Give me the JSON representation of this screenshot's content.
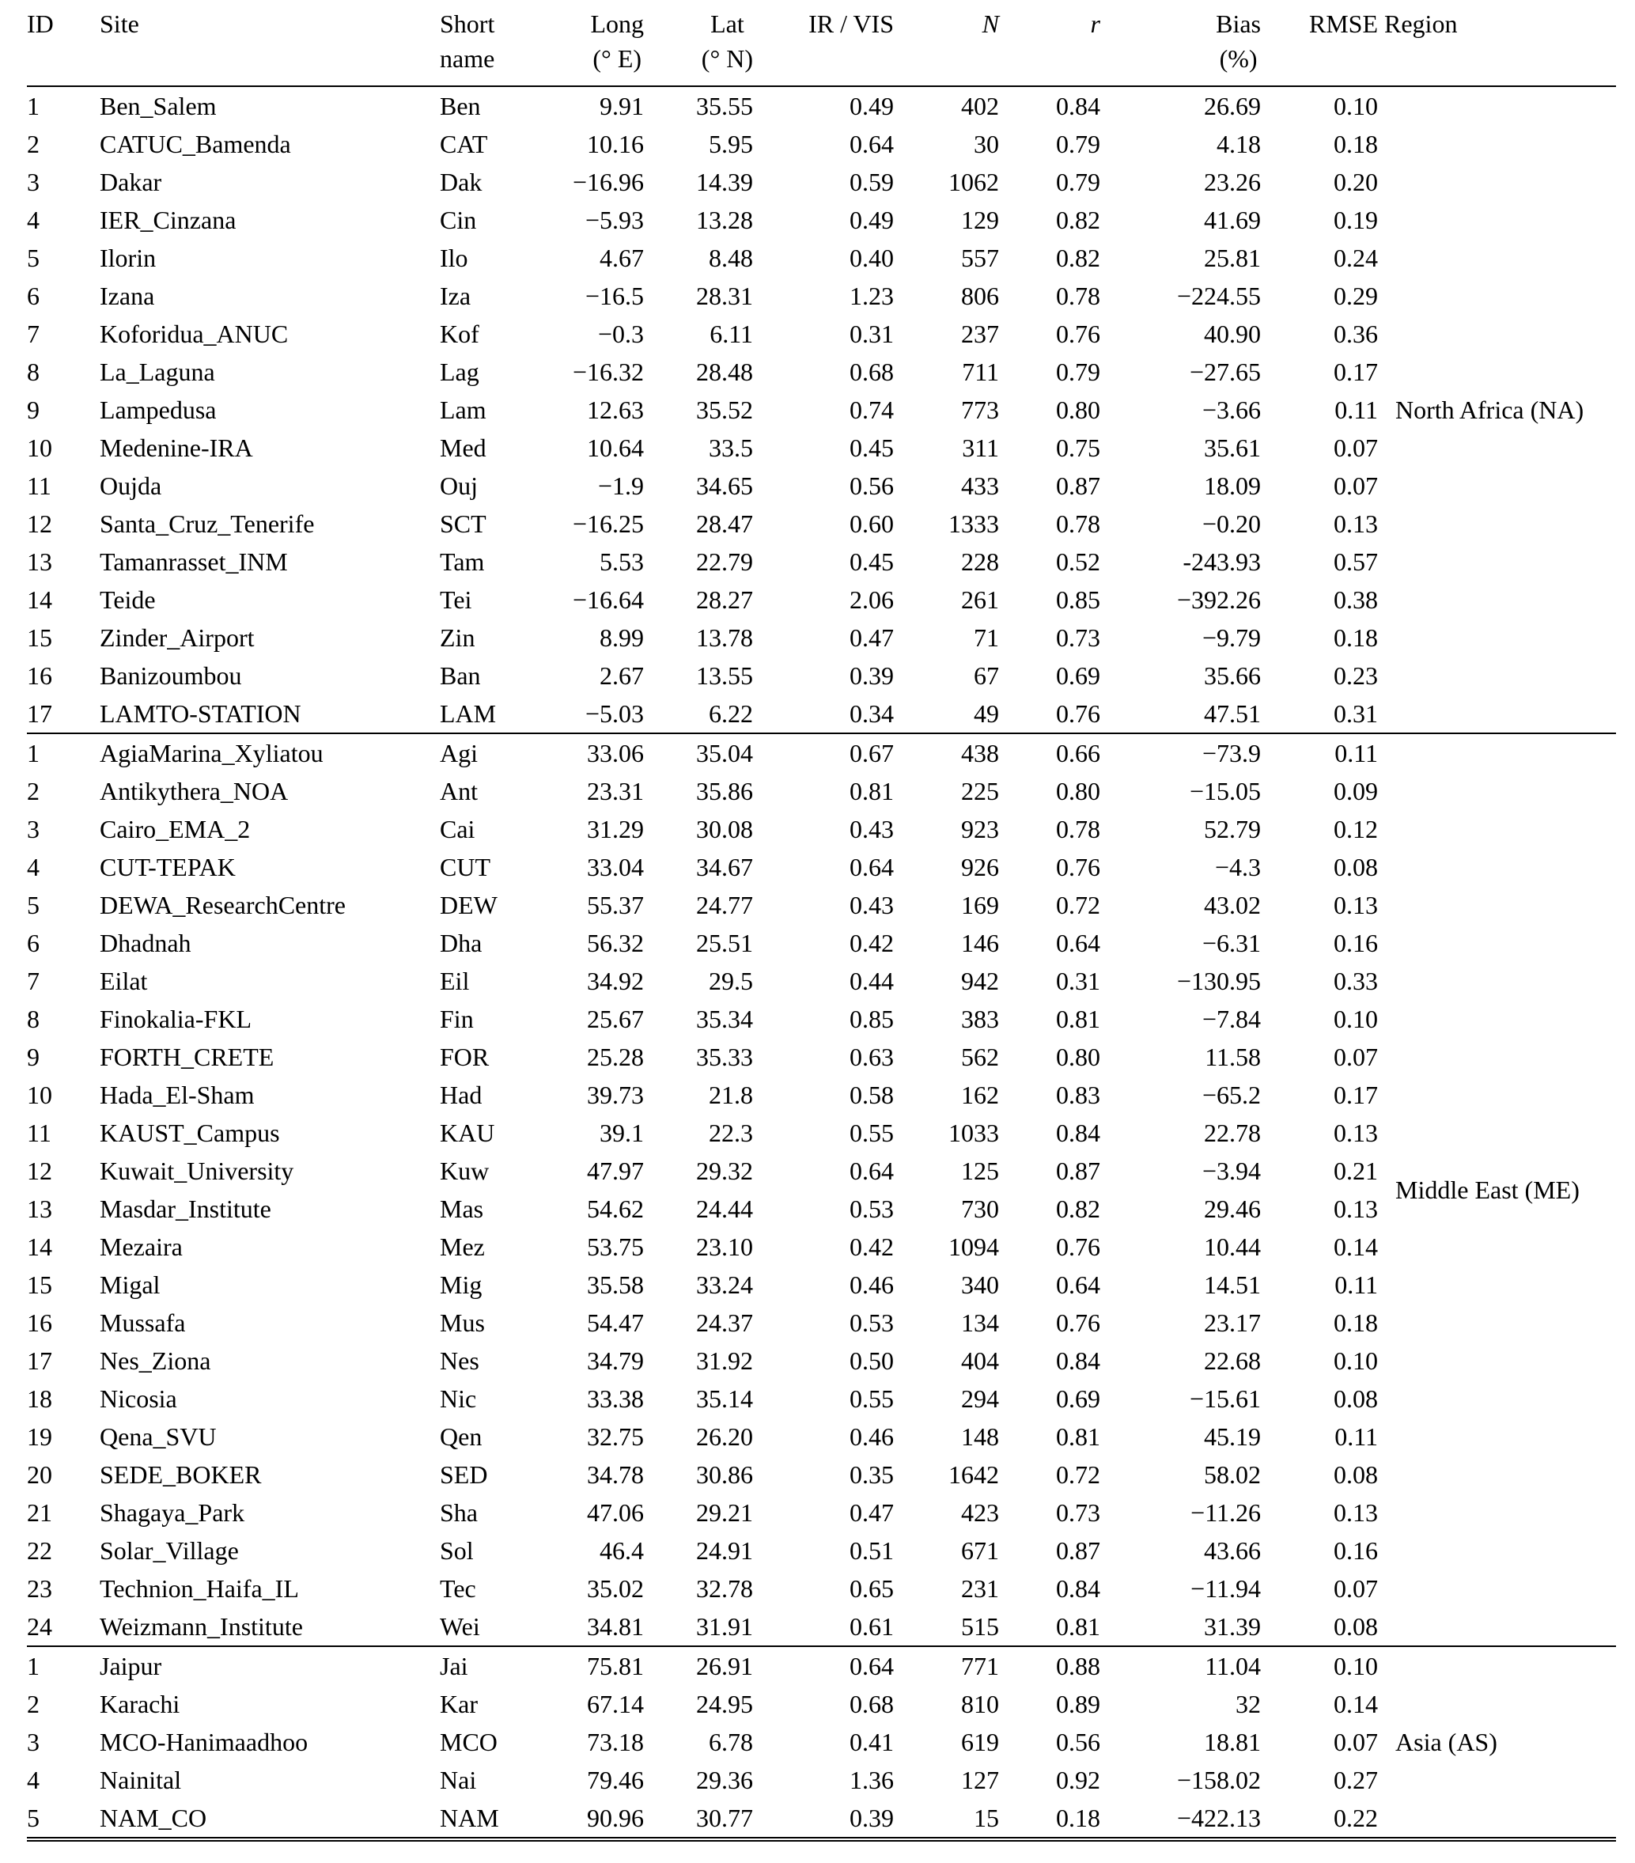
{
  "page": {
    "background_color": "#ffffff",
    "text_color": "#000000"
  },
  "table": {
    "columns": [
      {
        "key": "id",
        "line1": "ID",
        "line2": "",
        "align": "left",
        "italic": false
      },
      {
        "key": "site",
        "line1": "Site",
        "line2": "",
        "align": "left",
        "italic": false
      },
      {
        "key": "short",
        "line1": "Short",
        "line2": "name",
        "align": "left",
        "italic": false
      },
      {
        "key": "long",
        "line1": "Long",
        "line2": "(° E)",
        "align": "right",
        "italic": false
      },
      {
        "key": "lat",
        "line1": "Lat",
        "line2": "(° N)",
        "align": "right",
        "italic": false
      },
      {
        "key": "irvis",
        "line1": "IR / VIS",
        "line2": "",
        "align": "right",
        "italic": false
      },
      {
        "key": "n",
        "line1": "N",
        "line2": "",
        "align": "right",
        "italic": true
      },
      {
        "key": "r",
        "line1": "r",
        "line2": "",
        "align": "right",
        "italic": true
      },
      {
        "key": "bias",
        "line1": "Bias",
        "line2": "(%)",
        "align": "right",
        "italic": false
      },
      {
        "key": "rmse",
        "line1": "RMSE",
        "line2": "",
        "align": "right",
        "italic": false
      },
      {
        "key": "region",
        "line1": "Region",
        "line2": "",
        "align": "left",
        "italic": false
      }
    ],
    "groups": [
      {
        "region": "North Africa (NA)",
        "rows": [
          [
            "1",
            "Ben_Salem",
            "Ben",
            "9.91",
            "35.55",
            "0.49",
            "402",
            "0.84",
            "26.69",
            "0.10"
          ],
          [
            "2",
            "CATUC_Bamenda",
            "CAT",
            "10.16",
            "5.95",
            "0.64",
            "30",
            "0.79",
            "4.18",
            "0.18"
          ],
          [
            "3",
            "Dakar",
            "Dak",
            "−16.96",
            "14.39",
            "0.59",
            "1062",
            "0.79",
            "23.26",
            "0.20"
          ],
          [
            "4",
            "IER_Cinzana",
            "Cin",
            "−5.93",
            "13.28",
            "0.49",
            "129",
            "0.82",
            "41.69",
            "0.19"
          ],
          [
            "5",
            "Ilorin",
            "Ilo",
            "4.67",
            "8.48",
            "0.40",
            "557",
            "0.82",
            "25.81",
            "0.24"
          ],
          [
            "6",
            "Izana",
            "Iza",
            "−16.5",
            "28.31",
            "1.23",
            "806",
            "0.78",
            "−224.55",
            "0.29"
          ],
          [
            "7",
            "Koforidua_ANUC",
            "Kof",
            "−0.3",
            "6.11",
            "0.31",
            "237",
            "0.76",
            "40.90",
            "0.36"
          ],
          [
            "8",
            "La_Laguna",
            "Lag",
            "−16.32",
            "28.48",
            "0.68",
            "711",
            "0.79",
            "−27.65",
            "0.17"
          ],
          [
            "9",
            "Lampedusa",
            "Lam",
            "12.63",
            "35.52",
            "0.74",
            "773",
            "0.80",
            "−3.66",
            "0.11"
          ],
          [
            "10",
            "Medenine-IRA",
            "Med",
            "10.64",
            "33.5",
            "0.45",
            "311",
            "0.75",
            "35.61",
            "0.07"
          ],
          [
            "11",
            "Oujda",
            "Ouj",
            "−1.9",
            "34.65",
            "0.56",
            "433",
            "0.87",
            "18.09",
            "0.07"
          ],
          [
            "12",
            "Santa_Cruz_Tenerife",
            "SCT",
            "−16.25",
            "28.47",
            "0.60",
            "1333",
            "0.78",
            "−0.20",
            "0.13"
          ],
          [
            "13",
            "Tamanrasset_INM",
            "Tam",
            "5.53",
            "22.79",
            "0.45",
            "228",
            "0.52",
            "-243.93",
            "0.57"
          ],
          [
            "14",
            "Teide",
            "Tei",
            "−16.64",
            "28.27",
            "2.06",
            "261",
            "0.85",
            "−392.26",
            "0.38"
          ],
          [
            "15",
            "Zinder_Airport",
            "Zin",
            "8.99",
            "13.78",
            "0.47",
            "71",
            "0.73",
            "−9.79",
            "0.18"
          ],
          [
            "16",
            "Banizoumbou",
            "Ban",
            "2.67",
            "13.55",
            "0.39",
            "67",
            "0.69",
            "35.66",
            "0.23"
          ],
          [
            "17",
            "LAMTO-STATION",
            "LAM",
            "−5.03",
            "6.22",
            "0.34",
            "49",
            "0.76",
            "47.51",
            "0.31"
          ]
        ]
      },
      {
        "region": "Middle East (ME)",
        "rows": [
          [
            "1",
            "AgiaMarina_Xyliatou",
            "Agi",
            "33.06",
            "35.04",
            "0.67",
            "438",
            "0.66",
            "−73.9",
            "0.11"
          ],
          [
            "2",
            "Antikythera_NOA",
            "Ant",
            "23.31",
            "35.86",
            "0.81",
            "225",
            "0.80",
            "−15.05",
            "0.09"
          ],
          [
            "3",
            "Cairo_EMA_2",
            "Cai",
            "31.29",
            "30.08",
            "0.43",
            "923",
            "0.78",
            "52.79",
            "0.12"
          ],
          [
            "4",
            "CUT-TEPAK",
            "CUT",
            "33.04",
            "34.67",
            "0.64",
            "926",
            "0.76",
            "−4.3",
            "0.08"
          ],
          [
            "5",
            "DEWA_ResearchCentre",
            "DEW",
            "55.37",
            "24.77",
            "0.43",
            "169",
            "0.72",
            "43.02",
            "0.13"
          ],
          [
            "6",
            "Dhadnah",
            "Dha",
            "56.32",
            "25.51",
            "0.42",
            "146",
            "0.64",
            "−6.31",
            "0.16"
          ],
          [
            "7",
            "Eilat",
            "Eil",
            "34.92",
            "29.5",
            "0.44",
            "942",
            "0.31",
            "−130.95",
            "0.33"
          ],
          [
            "8",
            "Finokalia-FKL",
            "Fin",
            "25.67",
            "35.34",
            "0.85",
            "383",
            "0.81",
            "−7.84",
            "0.10"
          ],
          [
            "9",
            "FORTH_CRETE",
            "FOR",
            "25.28",
            "35.33",
            "0.63",
            "562",
            "0.80",
            "11.58",
            "0.07"
          ],
          [
            "10",
            "Hada_El-Sham",
            "Had",
            "39.73",
            "21.8",
            "0.58",
            "162",
            "0.83",
            "−65.2",
            "0.17"
          ],
          [
            "11",
            "KAUST_Campus",
            "KAU",
            "39.1",
            "22.3",
            "0.55",
            "1033",
            "0.84",
            "22.78",
            "0.13"
          ],
          [
            "12",
            "Kuwait_University",
            "Kuw",
            "47.97",
            "29.32",
            "0.64",
            "125",
            "0.87",
            "−3.94",
            "0.21"
          ],
          [
            "13",
            "Masdar_Institute",
            "Mas",
            "54.62",
            "24.44",
            "0.53",
            "730",
            "0.82",
            "29.46",
            "0.13"
          ],
          [
            "14",
            "Mezaira",
            "Mez",
            "53.75",
            "23.10",
            "0.42",
            "1094",
            "0.76",
            "10.44",
            "0.14"
          ],
          [
            "15",
            "Migal",
            "Mig",
            "35.58",
            "33.24",
            "0.46",
            "340",
            "0.64",
            "14.51",
            "0.11"
          ],
          [
            "16",
            "Mussafa",
            "Mus",
            "54.47",
            "24.37",
            "0.53",
            "134",
            "0.76",
            "23.17",
            "0.18"
          ],
          [
            "17",
            "Nes_Ziona",
            "Nes",
            "34.79",
            "31.92",
            "0.50",
            "404",
            "0.84",
            "22.68",
            "0.10"
          ],
          [
            "18",
            "Nicosia",
            "Nic",
            "33.38",
            "35.14",
            "0.55",
            "294",
            "0.69",
            "−15.61",
            "0.08"
          ],
          [
            "19",
            "Qena_SVU",
            "Qen",
            "32.75",
            "26.20",
            "0.46",
            "148",
            "0.81",
            "45.19",
            "0.11"
          ],
          [
            "20",
            "SEDE_BOKER",
            "SED",
            "34.78",
            "30.86",
            "0.35",
            "1642",
            "0.72",
            "58.02",
            "0.08"
          ],
          [
            "21",
            "Shagaya_Park",
            "Sha",
            "47.06",
            "29.21",
            "0.47",
            "423",
            "0.73",
            "−11.26",
            "0.13"
          ],
          [
            "22",
            "Solar_Village",
            "Sol",
            "46.4",
            "24.91",
            "0.51",
            "671",
            "0.87",
            "43.66",
            "0.16"
          ],
          [
            "23",
            "Technion_Haifa_IL",
            "Tec",
            "35.02",
            "32.78",
            "0.65",
            "231",
            "0.84",
            "−11.94",
            "0.07"
          ],
          [
            "24",
            "Weizmann_Institute",
            "Wei",
            "34.81",
            "31.91",
            "0.61",
            "515",
            "0.81",
            "31.39",
            "0.08"
          ]
        ]
      },
      {
        "region": "Asia (AS)",
        "rows": [
          [
            "1",
            "Jaipur",
            "Jai",
            "75.81",
            "26.91",
            "0.64",
            "771",
            "0.88",
            "11.04",
            "0.10"
          ],
          [
            "2",
            "Karachi",
            "Kar",
            "67.14",
            "24.95",
            "0.68",
            "810",
            "0.89",
            "32",
            "0.14"
          ],
          [
            "3",
            "MCO-Hanimaadhoo",
            "MCO",
            "73.18",
            "6.78",
            "0.41",
            "619",
            "0.56",
            "18.81",
            "0.07"
          ],
          [
            "4",
            "Nainital",
            "Nai",
            "79.46",
            "29.36",
            "1.36",
            "127",
            "0.92",
            "−158.02",
            "0.27"
          ],
          [
            "5",
            "NAM_CO",
            "NAM",
            "90.96",
            "30.77",
            "0.39",
            "15",
            "0.18",
            "−422.13",
            "0.22"
          ]
        ]
      }
    ]
  }
}
